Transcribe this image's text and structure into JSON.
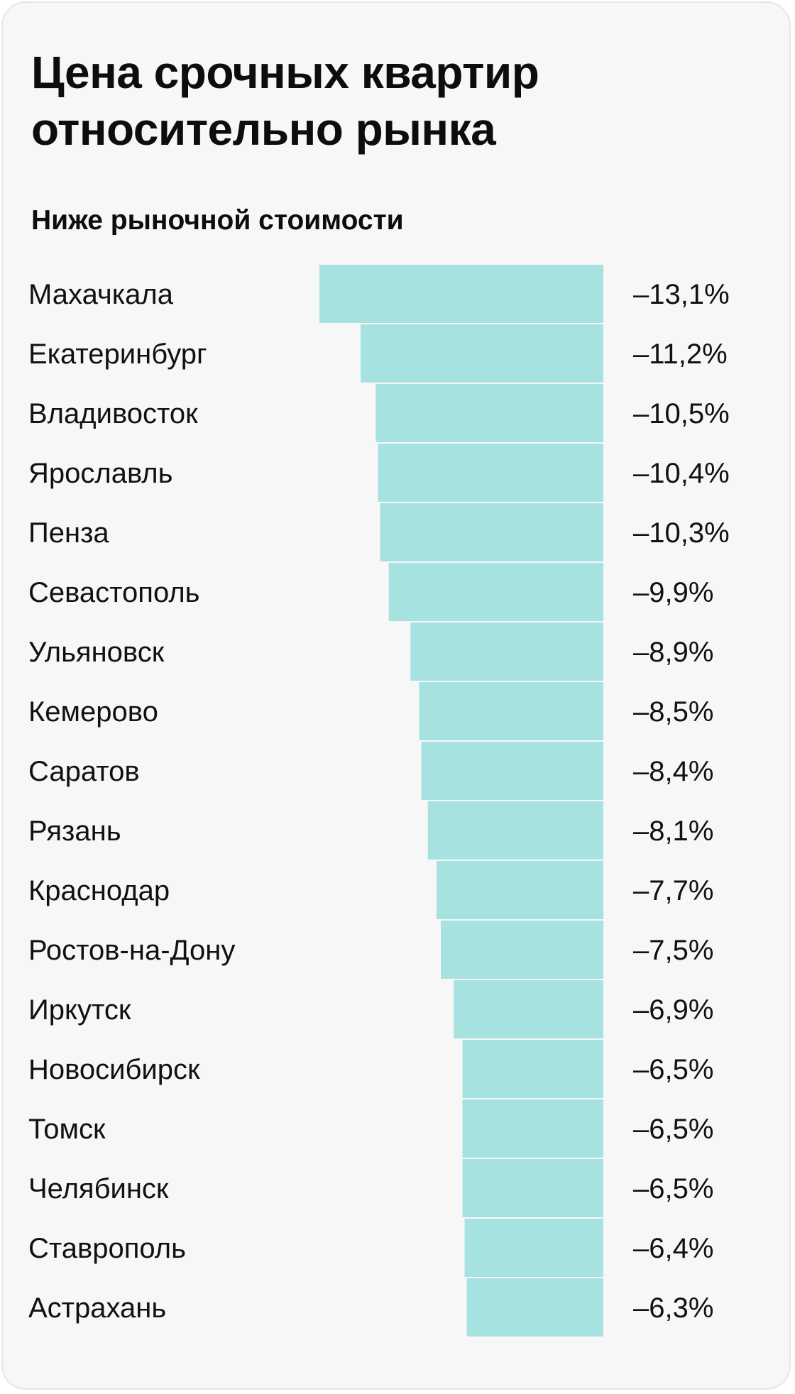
{
  "colors": {
    "bar": "#a6e3e0",
    "background": "#f7f7f7",
    "text": "#111111"
  },
  "chart_data": {
    "type": "bar",
    "orientation": "horizontal",
    "title": "Цена срочных квартир относительно рынка",
    "subtitle": "Ниже рыночной стоимости",
    "categories": [
      "Махачкала",
      "Екатеринбург",
      "Владивосток",
      "Ярославль",
      "Пенза",
      "Севастополь",
      "Ульяновск",
      "Кемерово",
      "Саратов",
      "Рязань",
      "Краснодар",
      "Ростов-на-Дону",
      "Иркутск",
      "Новосибирск",
      "Томск",
      "Челябинск",
      "Ставрополь",
      "Астрахань"
    ],
    "values": [
      -13.1,
      -11.2,
      -10.5,
      -10.4,
      -10.3,
      -9.9,
      -8.9,
      -8.5,
      -8.4,
      -8.1,
      -7.7,
      -7.5,
      -6.9,
      -6.5,
      -6.5,
      -6.5,
      -6.4,
      -6.3
    ],
    "value_labels": [
      "–13,1%",
      "–11,2%",
      "–10,5%",
      "–10,4%",
      "–10,3%",
      "–9,9%",
      "–8,9%",
      "–8,5%",
      "–8,4%",
      "–8,1%",
      "–7,7%",
      "–7,5%",
      "–6,9%",
      "–6,5%",
      "–6,5%",
      "–6,5%",
      "–6,4%",
      "–6,3%"
    ],
    "xlim": [
      -13.1,
      0
    ],
    "grid": false,
    "legend": "none"
  }
}
